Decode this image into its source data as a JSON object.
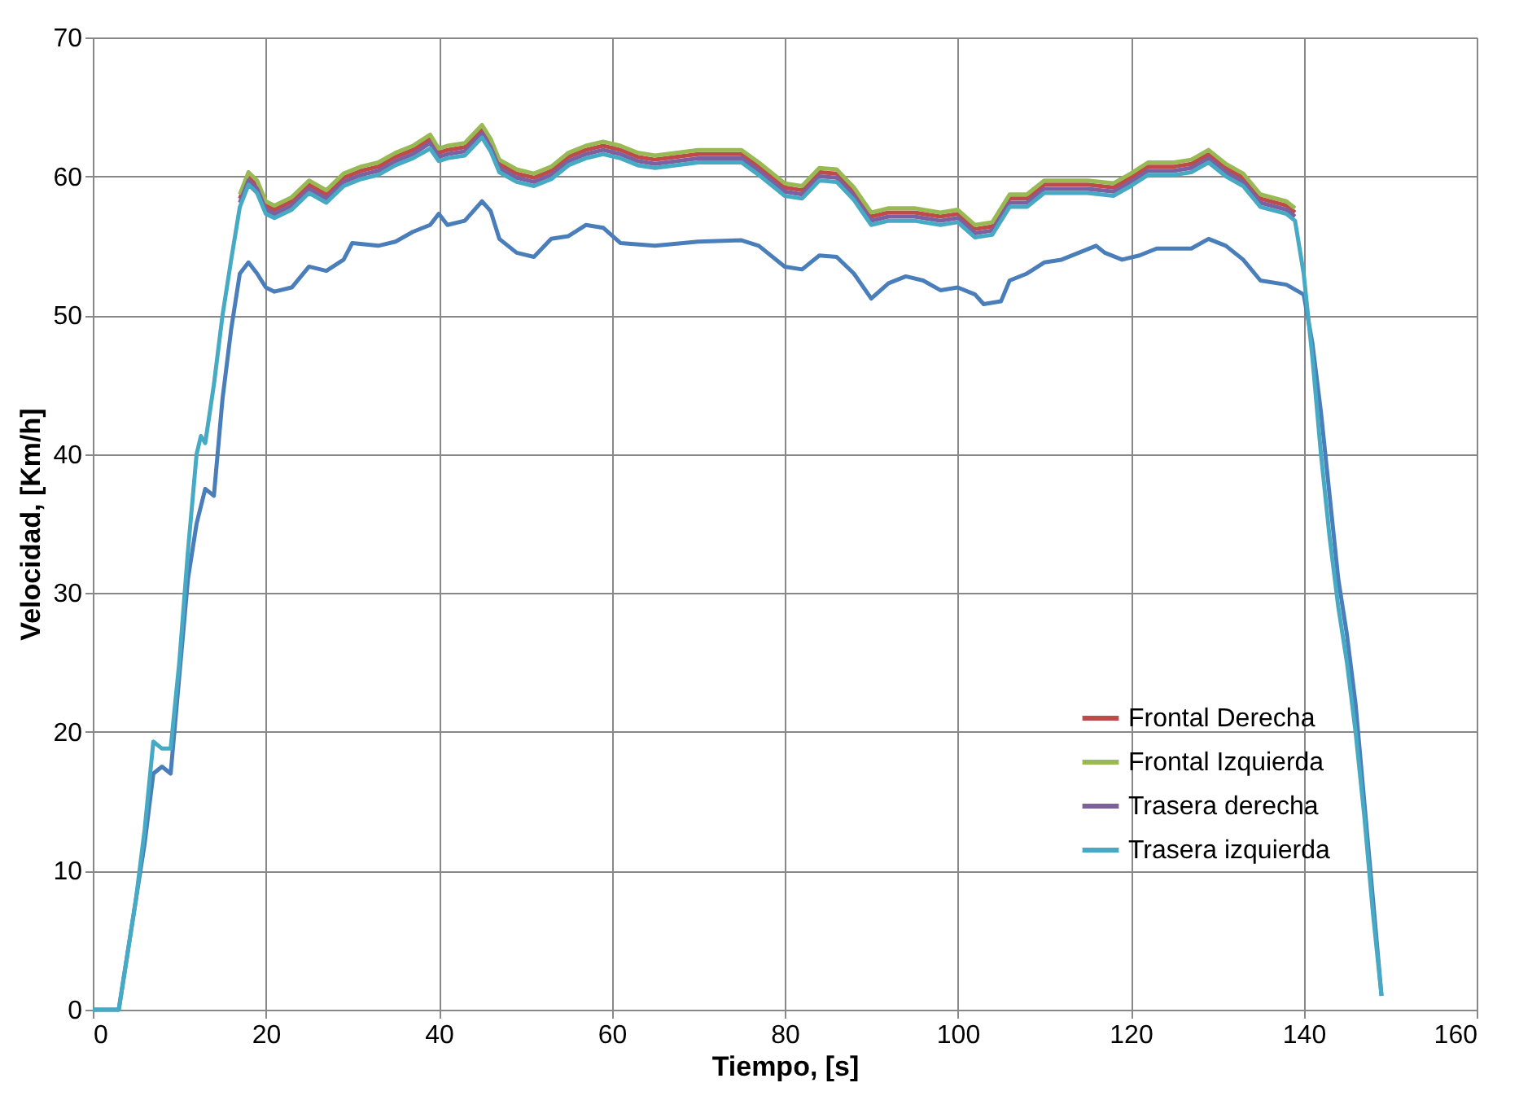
{
  "chart_data": {
    "type": "line",
    "xlabel": "Tiempo, [s]",
    "ylabel": "Velocidad, [Km/h]",
    "xlim": [
      0,
      160
    ],
    "xticks": [
      0,
      20,
      40,
      60,
      80,
      100,
      120,
      140,
      160
    ],
    "ylim": [
      0,
      70
    ],
    "yticks": [
      0,
      10,
      20,
      30,
      40,
      50,
      60,
      70
    ],
    "grid": true,
    "legend": "bottom right",
    "line_style": "solid",
    "series": [
      {
        "color": "#4a7ebb",
        "x": [
          0,
          3,
          4,
          5,
          6,
          7,
          8,
          9,
          10,
          11,
          12,
          13,
          14,
          15,
          16,
          17,
          18,
          19,
          20,
          21,
          23,
          25,
          27,
          29,
          30,
          33,
          35,
          37,
          39,
          40,
          41,
          43,
          45,
          46,
          47,
          49,
          51,
          53,
          55,
          57,
          59,
          61,
          65,
          70,
          75,
          77,
          80,
          82,
          84,
          86,
          88,
          90,
          92,
          94,
          96,
          98,
          100,
          102,
          103,
          105,
          106,
          108,
          110,
          112,
          114,
          116,
          117,
          119,
          121,
          123,
          127,
          129,
          131,
          133,
          135,
          138,
          140,
          141,
          142,
          143,
          144,
          145,
          146,
          147,
          148,
          149
        ],
        "values": [
          0,
          0,
          4,
          8,
          12,
          17,
          17.5,
          17,
          24,
          31,
          35,
          37.5,
          37,
          44,
          49,
          53,
          53.8,
          53,
          52,
          51.7,
          52,
          53.5,
          53.2,
          54,
          55.2,
          55,
          55.3,
          56,
          56.5,
          57.3,
          56.5,
          56.8,
          58.2,
          57.5,
          55.5,
          54.5,
          54.2,
          55.5,
          55.7,
          56.5,
          56.3,
          55.2,
          55,
          55.3,
          55.4,
          55,
          53.5,
          53.3,
          54.3,
          54.2,
          53,
          51.2,
          52.3,
          52.8,
          52.5,
          51.8,
          52,
          51.5,
          50.8,
          51,
          52.5,
          53,
          53.8,
          54,
          54.5,
          55,
          54.5,
          54,
          54.3,
          54.8,
          54.8,
          55.5,
          55,
          54,
          52.5,
          52.2,
          51.5,
          48,
          43,
          37,
          31,
          27,
          22,
          15,
          8,
          1
        ]
      },
      {
        "name": "Frontal Derecha",
        "color": "#be4b48",
        "x": [
          17,
          18,
          19,
          20,
          21,
          23,
          25,
          27,
          29,
          31,
          33,
          35,
          37,
          39,
          40,
          41,
          43,
          45,
          46,
          47,
          49,
          51,
          53,
          55,
          57,
          59,
          61,
          63,
          65,
          70,
          75,
          77,
          80,
          82,
          84,
          86,
          88,
          90,
          92,
          95,
          98,
          100,
          102,
          104,
          106,
          108,
          110,
          115,
          118,
          120,
          122,
          125,
          127,
          129,
          131,
          133,
          135,
          138,
          139
        ],
        "values": [
          58.4,
          60,
          59.4,
          57.9,
          57.6,
          58.2,
          59.4,
          58.7,
          59.9,
          60.4,
          60.7,
          61.4,
          61.9,
          62.7,
          61.7,
          61.9,
          62.1,
          63.4,
          62.4,
          60.9,
          60.2,
          59.9,
          60.4,
          61.4,
          61.9,
          62.2,
          61.9,
          61.4,
          61.2,
          61.6,
          61.6,
          60.7,
          59.2,
          59,
          60.3,
          60.2,
          58.9,
          57.1,
          57.4,
          57.4,
          57.1,
          57.3,
          56.2,
          56.4,
          58.4,
          58.4,
          59.4,
          59.4,
          59.2,
          59.9,
          60.7,
          60.7,
          60.9,
          61.6,
          60.6,
          59.9,
          58.4,
          57.9,
          57.4
        ]
      },
      {
        "name": "Frontal Izquierda",
        "color": "#98b954",
        "x": [
          17,
          18,
          19,
          20,
          21,
          23,
          25,
          27,
          29,
          31,
          33,
          35,
          37,
          39,
          40,
          41,
          43,
          45,
          46,
          47,
          49,
          51,
          53,
          55,
          57,
          59,
          61,
          63,
          65,
          70,
          75,
          77,
          80,
          82,
          84,
          86,
          88,
          90,
          92,
          95,
          98,
          100,
          102,
          104,
          106,
          108,
          110,
          115,
          118,
          120,
          122,
          125,
          127,
          129,
          131,
          133,
          135,
          138,
          139
        ],
        "values": [
          58.7,
          60.3,
          59.7,
          58.2,
          57.9,
          58.5,
          59.7,
          59,
          60.2,
          60.7,
          61,
          61.7,
          62.2,
          63,
          62,
          62.2,
          62.4,
          63.7,
          62.7,
          61.2,
          60.5,
          60.2,
          60.7,
          61.7,
          62.2,
          62.5,
          62.2,
          61.7,
          61.5,
          61.9,
          61.9,
          61,
          59.5,
          59.3,
          60.6,
          60.5,
          59.2,
          57.4,
          57.7,
          57.7,
          57.4,
          57.6,
          56.5,
          56.7,
          58.7,
          58.7,
          59.7,
          59.7,
          59.5,
          60.2,
          61,
          61,
          61.2,
          61.9,
          60.9,
          60.2,
          58.7,
          58.2,
          57.7
        ]
      },
      {
        "name": "Trasera derecha",
        "color": "#7d60a0",
        "x": [
          17,
          18,
          19,
          20,
          21,
          23,
          25,
          27,
          29,
          31,
          33,
          35,
          37,
          39,
          40,
          41,
          43,
          45,
          46,
          47,
          49,
          51,
          53,
          55,
          57,
          59,
          61,
          63,
          65,
          70,
          75,
          77,
          80,
          82,
          84,
          86,
          88,
          90,
          92,
          95,
          98,
          100,
          102,
          104,
          106,
          108,
          110,
          115,
          118,
          120,
          122,
          125,
          127,
          129,
          131,
          133,
          135,
          138,
          139
        ],
        "values": [
          58.1,
          59.7,
          59.1,
          57.6,
          57.3,
          57.9,
          59.1,
          58.4,
          59.6,
          60.1,
          60.4,
          61.1,
          61.6,
          62.4,
          61.4,
          61.6,
          61.8,
          63.1,
          62.1,
          60.6,
          59.9,
          59.6,
          60.1,
          61.1,
          61.6,
          61.9,
          61.6,
          61.1,
          60.9,
          61.3,
          61.3,
          60.4,
          58.9,
          58.7,
          60,
          59.9,
          58.6,
          56.8,
          57.1,
          57.1,
          56.8,
          57,
          55.9,
          56.1,
          58.1,
          58.1,
          59.1,
          59.1,
          58.9,
          59.6,
          60.4,
          60.4,
          60.6,
          61.3,
          60.3,
          59.6,
          58.1,
          57.6,
          57.1
        ]
      },
      {
        "name": "Trasera izquierda",
        "color": "#46aac5",
        "x": [
          0,
          3,
          4,
          5,
          6,
          7,
          8,
          9,
          10,
          11,
          12,
          12.5,
          13,
          14,
          15,
          16,
          17,
          18,
          19,
          20,
          21,
          23,
          25,
          27,
          29,
          31,
          33,
          35,
          37,
          39,
          40,
          41,
          43,
          45,
          46,
          47,
          49,
          51,
          53,
          55,
          57,
          59,
          61,
          63,
          65,
          70,
          75,
          77,
          80,
          82,
          84,
          86,
          88,
          90,
          92,
          95,
          98,
          100,
          102,
          104,
          106,
          108,
          110,
          115,
          118,
          120,
          122,
          125,
          127,
          129,
          131,
          133,
          135,
          138,
          139,
          140,
          141,
          142,
          143,
          144,
          145,
          146,
          147,
          148,
          149
        ],
        "values": [
          0,
          0,
          4,
          8,
          13,
          19.3,
          18.8,
          18.8,
          25,
          33,
          40,
          41.3,
          40.8,
          45,
          50,
          54,
          57.8,
          59.4,
          58.8,
          57.3,
          57,
          57.6,
          58.8,
          58.1,
          59.3,
          59.8,
          60.1,
          60.8,
          61.3,
          62,
          61.1,
          61.3,
          61.5,
          62.8,
          61.8,
          60.3,
          59.6,
          59.3,
          59.8,
          60.8,
          61.3,
          61.6,
          61.3,
          60.8,
          60.6,
          61,
          61,
          60.1,
          58.6,
          58.4,
          59.7,
          59.6,
          58.3,
          56.5,
          56.8,
          56.8,
          56.5,
          56.7,
          55.6,
          55.8,
          57.8,
          57.8,
          58.8,
          58.8,
          58.6,
          59.3,
          60.1,
          60.1,
          60.3,
          61,
          60,
          59.3,
          57.8,
          57.3,
          56.8,
          53,
          47,
          40,
          34,
          29,
          25,
          20,
          14,
          7,
          1
        ]
      }
    ]
  }
}
